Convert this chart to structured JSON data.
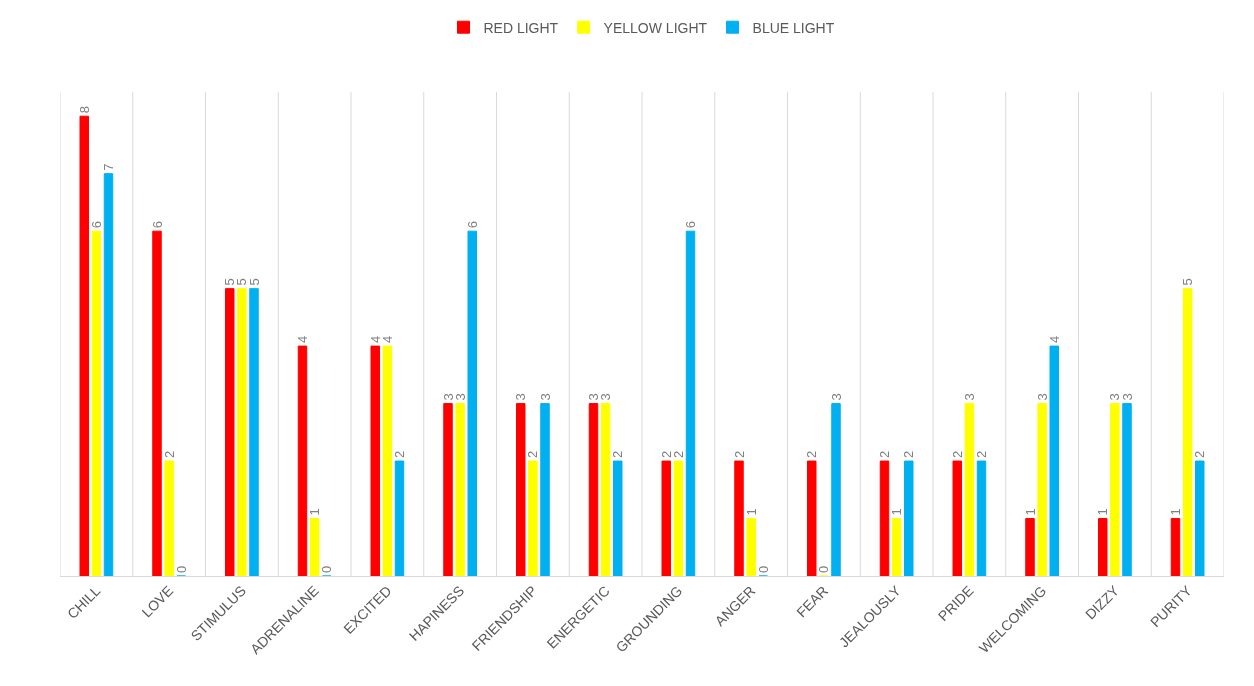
{
  "chart_data": {
    "type": "bar",
    "categories": [
      "CHILL",
      "LOVE",
      "STIMULUS",
      "ADRENALINE",
      "EXCITED",
      "HAPINESS",
      "FRIENDSHIP",
      "ENERGETIC",
      "GROUNDING",
      "ANGER",
      "FEAR",
      "JEALOUSLY",
      "PRIDE",
      "WELCOMING",
      "DIZZY",
      "PURITY"
    ],
    "series": [
      {
        "name": "RED LIGHT",
        "color": "#ff0000",
        "values": [
          8,
          6,
          5,
          4,
          4,
          3,
          3,
          3,
          2,
          2,
          2,
          2,
          2,
          1,
          1,
          1
        ]
      },
      {
        "name": "YELLOW LIGHT",
        "color": "#ffff00",
        "values": [
          6,
          2,
          5,
          1,
          4,
          3,
          2,
          3,
          2,
          1,
          0,
          1,
          3,
          3,
          3,
          5
        ]
      },
      {
        "name": "BLUE LIGHT",
        "color": "#00b0f0",
        "values": [
          7,
          0,
          5,
          0,
          2,
          6,
          3,
          2,
          6,
          0,
          3,
          2,
          2,
          4,
          3,
          2
        ]
      }
    ],
    "data_labels": true,
    "grid": "x",
    "legend": "top",
    "tick_labels": "x"
  }
}
